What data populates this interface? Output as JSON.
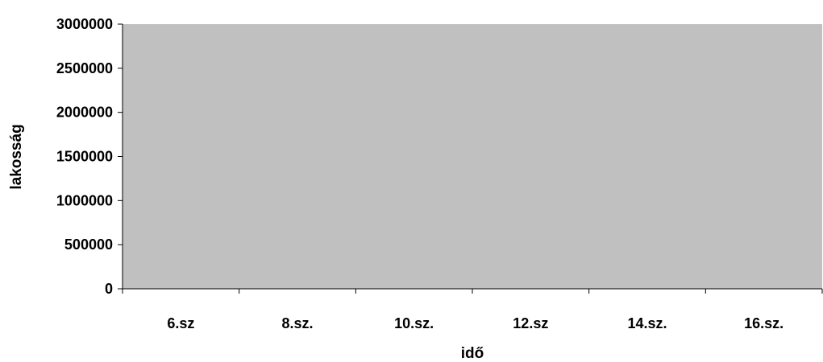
{
  "chart_data": {
    "type": "bar",
    "categories": [
      "6.sz",
      "8.sz.",
      "10.sz.",
      "12.sz",
      "14.sz.",
      "16.sz."
    ],
    "series": [
      {
        "values": [
          0,
          0,
          0,
          0,
          0,
          0
        ]
      }
    ],
    "title": "",
    "xlabel": "idő",
    "ylabel": "lakosság",
    "ylim": [
      0,
      3000000
    ],
    "yticks": [
      0,
      500000,
      1000000,
      1500000,
      2000000,
      2500000,
      3000000
    ],
    "ytick_labels": [
      "0",
      "500000",
      "1000000",
      "1500000",
      "2000000",
      "2500000",
      "3000000"
    ],
    "grid": false,
    "legend": "none",
    "colors": {
      "plot_area": "#c0c0c0",
      "axis": "#000000",
      "text": "#000000"
    }
  }
}
